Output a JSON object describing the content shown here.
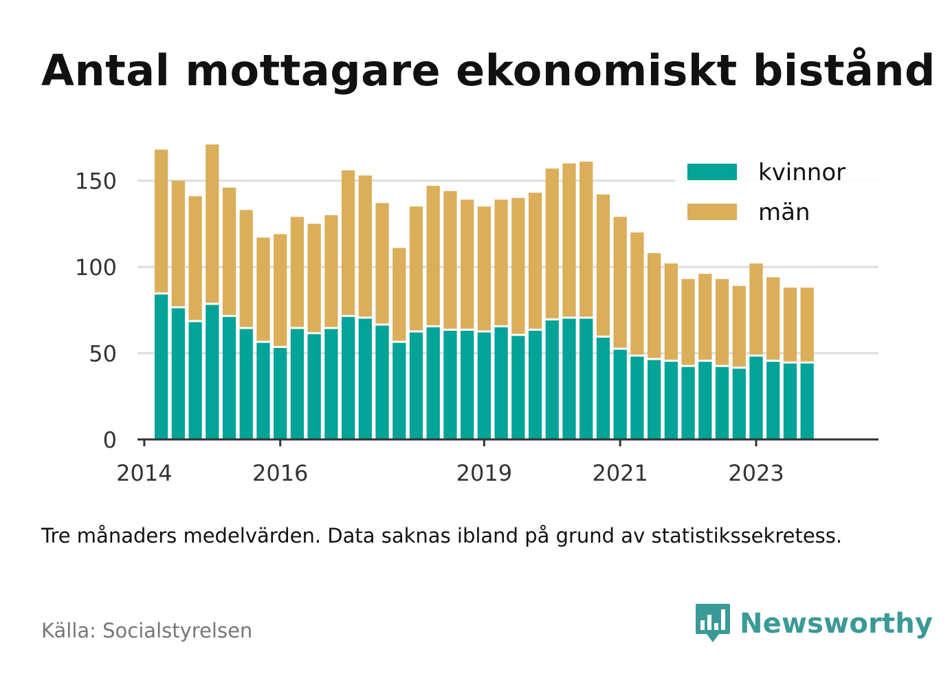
{
  "title": "Antal mottagare ekonomiskt bistånd",
  "note": "Tre månaders medelvärden. Data saknas ibland på grund av statistikssekretess.",
  "source": "Källa: Socialstyrelsen",
  "brand": {
    "name": "Newsworthy",
    "icon": "newsworthy-logo-icon",
    "color": "#3a9a97"
  },
  "colors": {
    "kvinnor": "#03a397",
    "man": "#dbae5a",
    "grid": "#dddddd",
    "axis": "#333333",
    "text": "#333333"
  },
  "chart_data": {
    "type": "bar",
    "stacked": true,
    "title": "Antal mottagare ekonomiskt bistånd",
    "xlabel": "",
    "ylabel": "",
    "ylim": [
      0,
      175
    ],
    "yticks": [
      0,
      50,
      100,
      150
    ],
    "xlim": [
      2013.9,
      2024.8
    ],
    "xticks": [
      2014,
      2016,
      2019,
      2021,
      2023
    ],
    "grid": true,
    "legend_position": "top-right",
    "x": [
      2014.25,
      2014.5,
      2014.75,
      2015.0,
      2015.25,
      2015.5,
      2015.75,
      2016.0,
      2016.25,
      2016.5,
      2016.75,
      2017.0,
      2017.25,
      2017.5,
      2017.75,
      2018.0,
      2018.25,
      2018.5,
      2018.75,
      2019.0,
      2019.25,
      2019.5,
      2019.75,
      2020.0,
      2020.25,
      2020.5,
      2020.75,
      2021.0,
      2021.25,
      2021.5,
      2021.75,
      2022.0,
      2022.25,
      2022.5,
      2022.75,
      2023.0,
      2023.25,
      2023.5,
      2023.75
    ],
    "series": [
      {
        "name": "kvinnor",
        "values": [
          84,
          76,
          68,
          78,
          71,
          64,
          56,
          53,
          64,
          61,
          64,
          71,
          70,
          66,
          56,
          62,
          65,
          63,
          63,
          62,
          65,
          60,
          63,
          69,
          70,
          70,
          59,
          52,
          48,
          46,
          45,
          42,
          45,
          42,
          41,
          48,
          45,
          44,
          44
        ]
      },
      {
        "name": "män",
        "values": [
          84,
          74,
          73,
          93,
          75,
          69,
          61,
          66,
          65,
          64,
          66,
          85,
          83,
          71,
          55,
          73,
          82,
          81,
          76,
          73,
          74,
          80,
          80,
          88,
          90,
          91,
          83,
          77,
          72,
          62,
          57,
          51,
          51,
          51,
          48,
          54,
          49,
          44,
          44
        ]
      }
    ]
  }
}
